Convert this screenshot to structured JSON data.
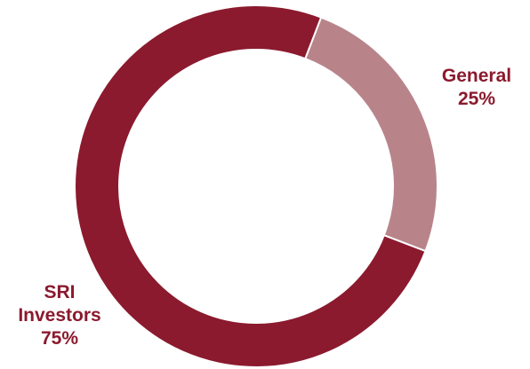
{
  "chart_data": {
    "type": "pie",
    "donut": true,
    "categories": [
      "General",
      "SRI Investors"
    ],
    "values": [
      25,
      75
    ],
    "labels": [
      {
        "lines": [
          "General",
          "25%"
        ]
      },
      {
        "lines": [
          "SRI",
          "Investors",
          "75%"
        ]
      }
    ],
    "colors": [
      "#b8848a",
      "#8b1a2e"
    ],
    "title": "",
    "legend": "none"
  }
}
